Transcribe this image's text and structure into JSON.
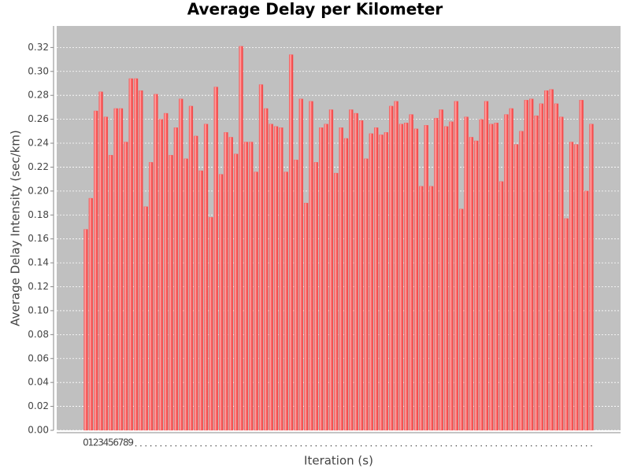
{
  "chart_data": {
    "type": "bar",
    "title": "Average Delay per Kilometer",
    "x_label": "Iteration (s)",
    "y_label": "Average Delay Intensity (sec/km)",
    "categories": [
      "0",
      "1",
      "2",
      "3",
      "4",
      "5",
      "6",
      "7",
      "8",
      "9",
      null,
      null,
      null,
      null,
      null,
      null,
      null,
      null,
      null,
      null,
      null,
      null,
      null,
      null,
      null,
      null,
      null,
      null,
      null,
      null,
      null,
      null,
      null,
      null,
      null,
      null,
      null,
      null,
      null,
      null,
      null,
      null,
      null,
      null,
      null,
      null,
      null,
      null,
      null,
      null,
      null,
      null,
      null,
      null,
      null,
      null,
      null,
      null,
      null,
      null,
      null,
      null,
      null,
      null,
      null,
      null,
      null,
      null,
      null,
      null,
      null,
      null,
      null,
      null,
      null,
      null,
      null,
      null,
      null,
      null,
      null,
      null,
      null,
      null,
      null,
      null,
      null,
      null,
      null,
      null,
      null,
      null,
      null,
      null,
      null,
      null,
      null,
      null,
      null,
      null,
      null,
      null
    ],
    "values": [
      0.168,
      0.194,
      0.267,
      0.283,
      0.262,
      0.23,
      0.269,
      0.269,
      0.241,
      0.294,
      0.294,
      0.284,
      0.187,
      0.224,
      0.281,
      0.26,
      0.265,
      0.23,
      0.253,
      0.277,
      0.227,
      0.271,
      0.246,
      0.217,
      0.256,
      0.178,
      0.287,
      0.214,
      0.249,
      0.245,
      0.231,
      0.321,
      0.241,
      0.241,
      0.216,
      0.289,
      0.269,
      0.256,
      0.254,
      0.253,
      0.216,
      0.314,
      0.226,
      0.277,
      0.19,
      0.275,
      0.224,
      0.253,
      0.256,
      0.268,
      0.215,
      0.253,
      0.244,
      0.268,
      0.265,
      0.259,
      0.227,
      0.248,
      0.253,
      0.247,
      0.249,
      0.271,
      0.275,
      0.256,
      0.257,
      0.264,
      0.252,
      0.204,
      0.255,
      0.204,
      0.261,
      0.268,
      0.254,
      0.258,
      0.275,
      0.185,
      0.262,
      0.245,
      0.242,
      0.26,
      0.275,
      0.256,
      0.257,
      0.208,
      0.264,
      0.269,
      0.239,
      0.25,
      0.276,
      0.277,
      0.263,
      0.273,
      0.284,
      0.285,
      0.273,
      0.262,
      0.177,
      0.241,
      0.239,
      0.276,
      0.2,
      0.256
    ],
    "color": "#ff5555",
    "ylim": [
      0,
      0.338
    ],
    "yticks": [
      {
        "value": 0,
        "label": "0.00"
      },
      {
        "value": 0.02,
        "label": "0.02"
      },
      {
        "value": 0.04,
        "label": "0.04"
      },
      {
        "value": 0.06,
        "label": "0.06"
      },
      {
        "value": 0.08,
        "label": "0.08"
      },
      {
        "value": 0.1,
        "label": "0.10"
      },
      {
        "value": 0.12,
        "label": "0.12"
      },
      {
        "value": 0.14,
        "label": "0.14"
      },
      {
        "value": 0.16,
        "label": "0.16"
      },
      {
        "value": 0.18,
        "label": "0.18"
      },
      {
        "value": 0.2,
        "label": "0.20"
      },
      {
        "value": 0.22,
        "label": "0.22"
      },
      {
        "value": 0.24,
        "label": "0.24"
      },
      {
        "value": 0.26,
        "label": "0.26"
      },
      {
        "value": 0.28,
        "label": "0.28"
      },
      {
        "value": 0.3,
        "label": "0.30"
      },
      {
        "value": 0.32,
        "label": "0.32"
      }
    ],
    "grid": true
  }
}
